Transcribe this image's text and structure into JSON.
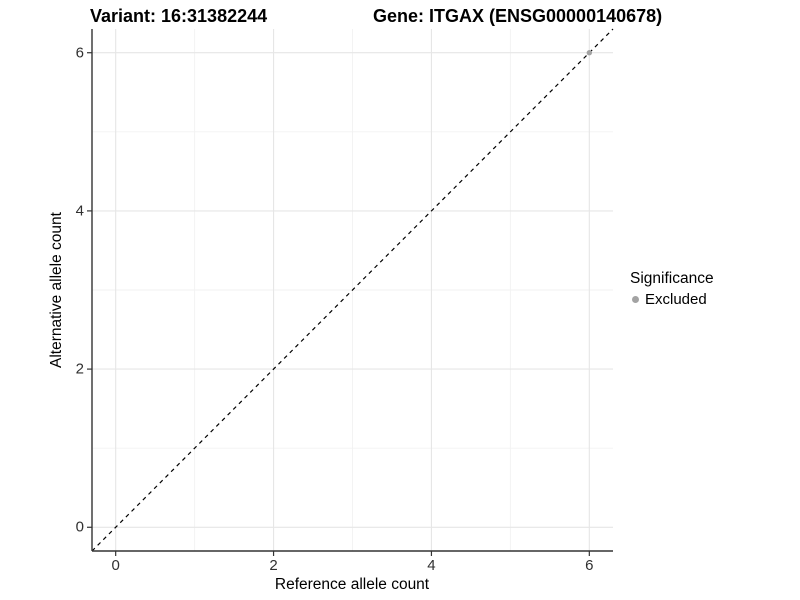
{
  "chart_data": {
    "type": "scatter",
    "title_left": "Variant: 16:31382244",
    "title_right": "Gene: ITGAX (ENSG00000140678)",
    "xlabel": "Reference allele count",
    "ylabel": "Alternative allele count",
    "xlim": [
      -0.3,
      6.3
    ],
    "ylim": [
      -0.3,
      6.3
    ],
    "x_ticks": [
      0,
      2,
      4,
      6
    ],
    "y_ticks": [
      0,
      2,
      4,
      6
    ],
    "x_minor_ticks": [
      1,
      3,
      5
    ],
    "y_minor_ticks": [
      1,
      3,
      5
    ],
    "grid": true,
    "series": [
      {
        "name": "Excluded",
        "color": "#a3a3a3",
        "points": [
          [
            6,
            6
          ]
        ]
      }
    ],
    "reference_line": {
      "slope": 1,
      "intercept": 0,
      "style": "dashed",
      "color": "#000000"
    },
    "legend": {
      "title": "Significance",
      "position": "right",
      "entries": [
        {
          "label": "Excluded",
          "color": "#a3a3a3"
        }
      ]
    },
    "colors": {
      "axis_line": "#333333",
      "tick_text": "#303030",
      "grid_major": "#e6e6e6",
      "grid_minor": "#f2f2f2"
    }
  }
}
